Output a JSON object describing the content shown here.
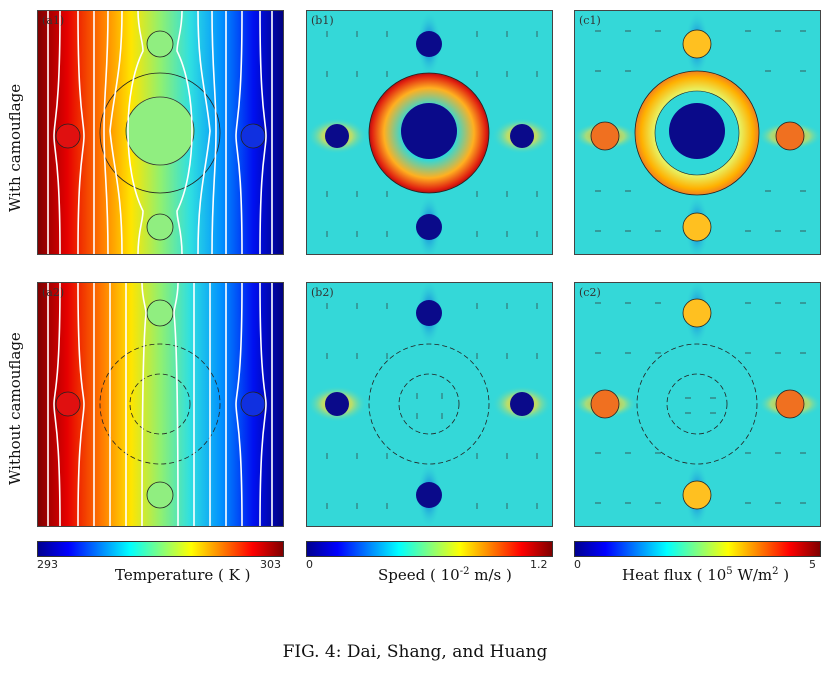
{
  "rows": {
    "row1_label": "With camouflage",
    "row2_label": "Without camouflage"
  },
  "panels": {
    "a1": "(a1)",
    "b1": "(b1)",
    "c1": "(c1)",
    "a2": "(a2)",
    "b2": "(b2)",
    "c2": "(c2)"
  },
  "colorbars": {
    "temperature": {
      "min": "293",
      "max": "303",
      "title": "Temperature ( K )"
    },
    "speed": {
      "min": "0",
      "max": "1.2",
      "title_pre": "Speed ( 10",
      "title_sup": "-2",
      "title_post": " m/s )"
    },
    "heatflux": {
      "min": "0",
      "max": "5",
      "title_pre": "Heat flux ( 10",
      "title_sup": "5",
      "title_post": " W/m",
      "title_sup2": "2",
      "title_end": " )"
    }
  },
  "caption": "FIG. 4: Dai, Shang, and Huang",
  "colors": {
    "jet": [
      "#00008f",
      "#0000ff",
      "#0080ff",
      "#00ffff",
      "#80ff80",
      "#ffff00",
      "#ff8000",
      "#ff0000",
      "#800000"
    ],
    "field_bg": "#34d8d8",
    "object_dark": "#0a0a8a",
    "object_orange": "#f07020"
  }
}
